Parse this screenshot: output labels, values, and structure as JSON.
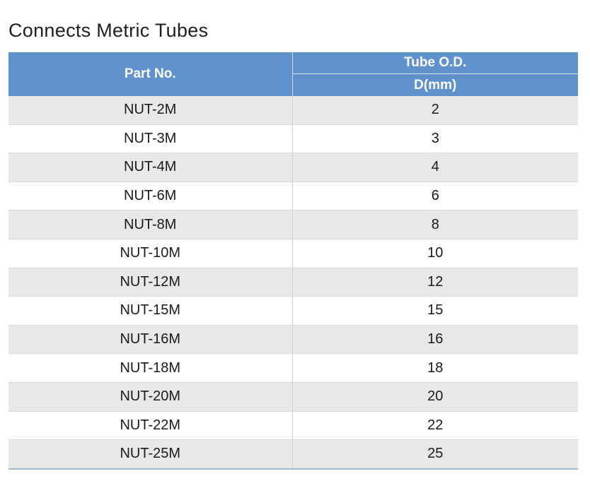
{
  "title": "Connects Metric Tubes",
  "table": {
    "headers": {
      "part_no": "Part No.",
      "tube_od": "Tube O.D.",
      "tube_od_unit": "D(mm)"
    },
    "rows": [
      {
        "part": "NUT-2M",
        "d": "2"
      },
      {
        "part": "NUT-3M",
        "d": "3"
      },
      {
        "part": "NUT-4M",
        "d": "4"
      },
      {
        "part": "NUT-6M",
        "d": "6"
      },
      {
        "part": "NUT-8M",
        "d": "8"
      },
      {
        "part": "NUT-10M",
        "d": "10"
      },
      {
        "part": "NUT-12M",
        "d": "12"
      },
      {
        "part": "NUT-15M",
        "d": "15"
      },
      {
        "part": "NUT-16M",
        "d": "16"
      },
      {
        "part": "NUT-18M",
        "d": "18"
      },
      {
        "part": "NUT-20M",
        "d": "20"
      },
      {
        "part": "NUT-22M",
        "d": "22"
      },
      {
        "part": "NUT-25M",
        "d": "25"
      }
    ]
  },
  "colors": {
    "header_bg": "#5f91cc",
    "header_text": "#ffffff",
    "row_alt_bg": "#e8e8e8",
    "row_bg": "#ffffff"
  }
}
